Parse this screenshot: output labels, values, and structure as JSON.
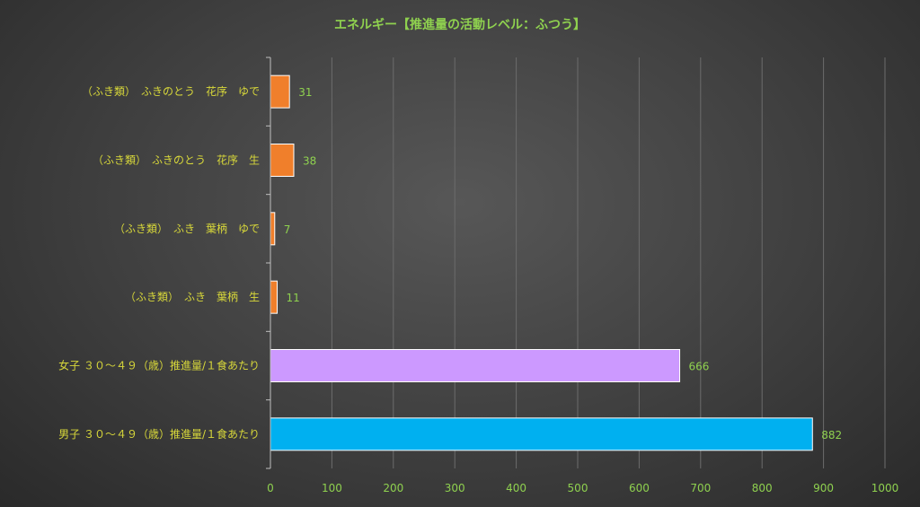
{
  "chart_data": {
    "type": "bar",
    "orientation": "horizontal",
    "title": "エネルギー【推進量の活動レベル：ふつう】",
    "categories": [
      "（ふき類）　ふきのとう　花序　ゆで",
      "（ふき類）　ふきのとう　花序　生",
      "（ふき類）　ふき　葉柄　ゆで",
      "（ふき類）　ふき　葉柄　生",
      "女子 ３０～４９（歳）推進量/１食あたり",
      "男子 ３０～４９（歳）推進量/１食あたり"
    ],
    "values": [
      31,
      38,
      7,
      11,
      666,
      882
    ],
    "bar_colors": [
      "#f07f2b",
      "#f07f2b",
      "#f07f2b",
      "#f07f2b",
      "#cc99ff",
      "#00b0f0"
    ],
    "xlim": [
      0,
      1000
    ],
    "xticks": [
      0,
      100,
      200,
      300,
      400,
      500,
      600,
      700,
      800,
      900,
      1000
    ],
    "grid": true,
    "xlabel": "",
    "ylabel": ""
  }
}
